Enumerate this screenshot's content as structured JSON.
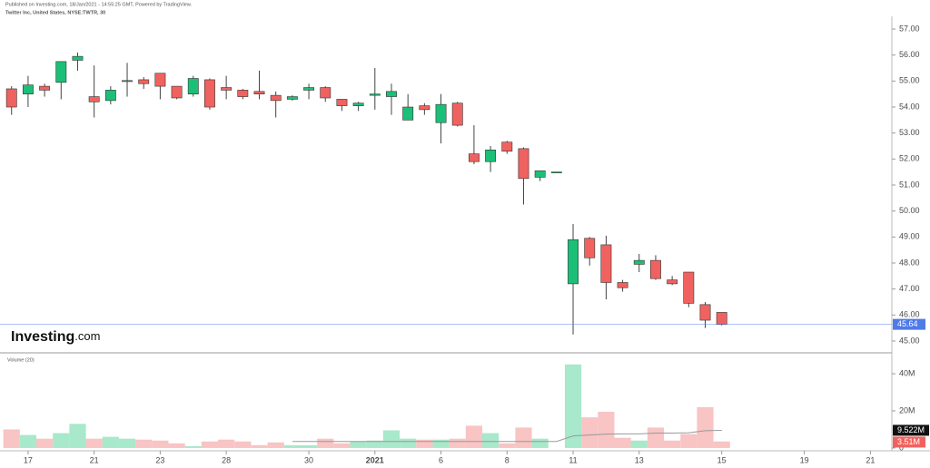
{
  "chart_data": {
    "type": "candlestick",
    "published": "Published on Investing.com, 18/Jan/2021 - 14:55:25 GMT, Powered by TradingView.",
    "title": "Twitter Inc, United States, NYSE:TWTR, 30",
    "logo": "Investing",
    "logo_suffix": ".com",
    "up_color": "#1cbf78",
    "down_color": "#f0625f",
    "open": [
      54.7,
      54.5,
      54.8,
      54.95,
      55.8,
      54.4,
      54.25,
      54.98,
      55.05,
      55.3,
      54.8,
      54.5,
      55.05,
      54.75,
      54.65,
      54.6,
      54.45,
      54.3,
      54.65,
      54.75,
      54.3,
      54.05,
      54.45,
      54.4,
      53.5,
      54.05,
      53.4,
      54.15,
      52.2,
      51.9,
      52.65,
      52.4,
      51.3,
      51.5,
      47.2,
      48.95,
      48.7,
      47.25,
      47.95,
      48.1,
      47.35,
      47.65,
      46.4,
      46.1
    ],
    "high": [
      54.8,
      55.2,
      54.9,
      55.75,
      56.1,
      55.6,
      54.8,
      55.7,
      55.15,
      55.3,
      54.8,
      55.2,
      55.1,
      55.2,
      54.7,
      55.4,
      54.6,
      54.45,
      54.9,
      54.8,
      54.3,
      54.2,
      55.5,
      54.9,
      54.5,
      54.15,
      54.5,
      54.2,
      53.3,
      52.5,
      52.7,
      52.45,
      51.55,
      51.5,
      49.5,
      49.0,
      49.05,
      47.35,
      48.35,
      48.3,
      47.5,
      47.65,
      46.5,
      46.1
    ],
    "low": [
      53.7,
      54.0,
      54.4,
      54.3,
      55.4,
      53.6,
      54.1,
      54.4,
      54.7,
      54.3,
      54.3,
      54.4,
      53.9,
      54.3,
      54.3,
      54.3,
      53.6,
      54.25,
      54.3,
      54.2,
      53.85,
      53.85,
      53.9,
      53.7,
      53.5,
      53.7,
      52.6,
      53.25,
      51.8,
      51.5,
      52.2,
      50.25,
      51.15,
      51.5,
      45.25,
      47.9,
      46.6,
      46.9,
      47.65,
      47.35,
      47.15,
      46.3,
      45.5,
      45.6
    ],
    "close": [
      54.0,
      54.85,
      54.65,
      55.75,
      55.95,
      54.2,
      54.65,
      55.02,
      54.9,
      54.8,
      54.35,
      55.1,
      54.0,
      54.65,
      54.4,
      54.5,
      54.25,
      54.4,
      54.75,
      54.35,
      54.05,
      54.15,
      54.5,
      54.6,
      54.0,
      53.9,
      54.1,
      53.3,
      51.9,
      52.35,
      52.3,
      51.25,
      51.55,
      51.5,
      48.9,
      48.2,
      47.25,
      47.05,
      48.1,
      47.4,
      47.2,
      46.45,
      45.8,
      45.64
    ],
    "xlim": [
      -0.7,
      53.3
    ],
    "xticks": [
      {
        "value": 1,
        "label": "17"
      },
      {
        "value": 5,
        "label": "21"
      },
      {
        "value": 9,
        "label": "23"
      },
      {
        "value": 13,
        "label": "28"
      },
      {
        "value": 18,
        "label": "30"
      },
      {
        "value": 22,
        "label": "2021"
      },
      {
        "value": 26,
        "label": "6"
      },
      {
        "value": 30,
        "label": "8"
      },
      {
        "value": 34,
        "label": "11"
      },
      {
        "value": 38,
        "label": "13"
      },
      {
        "value": 43,
        "label": "15"
      },
      {
        "value": 48,
        "label": "19"
      },
      {
        "value": 52,
        "label": "21"
      }
    ],
    "ylim": [
      44.58,
      57.49
    ],
    "yticks": [
      {
        "value": 45,
        "label": "45.00"
      },
      {
        "value": 46,
        "label": "46.00"
      },
      {
        "value": 47,
        "label": "47.00"
      },
      {
        "value": 48,
        "label": "48.00"
      },
      {
        "value": 49,
        "label": "49.00"
      },
      {
        "value": 50,
        "label": "50.00"
      },
      {
        "value": 51,
        "label": "51.00"
      },
      {
        "value": 52,
        "label": "52.00"
      },
      {
        "value": 53,
        "label": "53.00"
      },
      {
        "value": 54,
        "label": "54.00"
      },
      {
        "value": 55,
        "label": "55.00"
      },
      {
        "value": 56,
        "label": "56.00"
      },
      {
        "value": 57,
        "label": "57.00"
      }
    ],
    "last_price_color": "#4f7be8",
    "volume": {
      "label": "Volume (20)",
      "up_color": "#a8e8cb",
      "down_color": "#f8c4c4",
      "values": [
        10,
        7,
        5,
        8,
        13,
        5,
        6,
        5,
        4.5,
        4,
        2.5,
        1,
        3.5,
        4.5,
        3.5,
        1.5,
        3,
        1.5,
        1.5,
        5,
        2.5,
        3.5,
        4,
        9.5,
        5,
        4.5,
        4.5,
        5,
        12,
        8,
        2.5,
        11,
        5,
        0,
        45,
        16.5,
        19.5,
        5.5,
        4,
        11,
        4,
        7.5,
        22,
        3.51
      ],
      "last_label": "3.51M",
      "last_color": "#f0625f",
      "ma": [
        null,
        null,
        null,
        null,
        null,
        null,
        null,
        null,
        null,
        null,
        null,
        null,
        null,
        null,
        null,
        null,
        null,
        3.5,
        3.5,
        3.5,
        3.5,
        3.5,
        3.5,
        3.5,
        3.5,
        3.5,
        3.5,
        3.5,
        3.5,
        3.5,
        3.5,
        3.5,
        3.5,
        3.5,
        6.5,
        7,
        7.5,
        7.6,
        7.6,
        8,
        8,
        8.2,
        9.3,
        9.522
      ],
      "ma_color": "#9a9a9a",
      "ma_last_label": "9.522M",
      "ylim": [
        -1.5,
        49.8
      ],
      "yticks": [
        0,
        {
          "value": 20,
          "label": "20M"
        },
        {
          "value": 40,
          "label": "40M"
        }
      ]
    }
  }
}
